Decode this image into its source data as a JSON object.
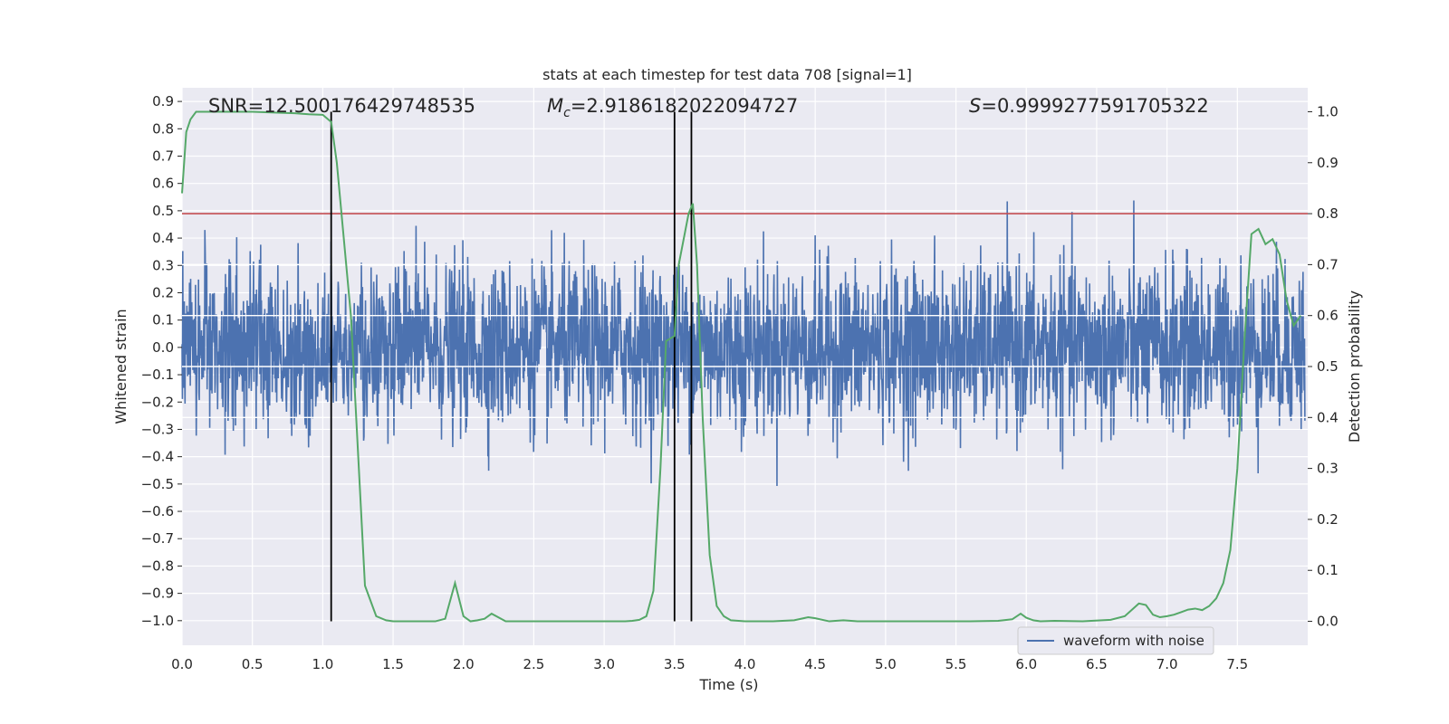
{
  "chart_data": {
    "type": "line",
    "title": "stats at each timestep for test data 708 [signal=1]",
    "xlabel": "Time (s)",
    "ylabel_left": "Whitened strain",
    "ylabel_right": "Detection probability",
    "xlim": [
      0.0,
      8.0
    ],
    "ylim_left": [
      -1.09,
      0.95
    ],
    "ylim_right": [
      -0.047,
      1.047
    ],
    "x_ticks": [
      "0.0",
      "0.5",
      "1.0",
      "1.5",
      "2.0",
      "2.5",
      "3.0",
      "3.5",
      "4.0",
      "4.5",
      "5.0",
      "5.5",
      "6.0",
      "6.5",
      "7.0",
      "7.5"
    ],
    "x_tick_values": [
      0.0,
      0.5,
      1.0,
      1.5,
      2.0,
      2.5,
      3.0,
      3.5,
      4.0,
      4.5,
      5.0,
      5.5,
      6.0,
      6.5,
      7.0,
      7.5
    ],
    "y_left_ticks": [
      "0.9",
      "0.8",
      "0.7",
      "0.6",
      "0.5",
      "0.4",
      "0.3",
      "0.2",
      "0.1",
      "0.0",
      "−0.1",
      "−0.2",
      "−0.3",
      "−0.4",
      "−0.5",
      "−0.6",
      "−0.7",
      "−0.8",
      "−0.9",
      "−1.0"
    ],
    "y_left_tick_values": [
      0.9,
      0.8,
      0.7,
      0.6,
      0.5,
      0.4,
      0.3,
      0.2,
      0.1,
      0.0,
      -0.1,
      -0.2,
      -0.3,
      -0.4,
      -0.5,
      -0.6,
      -0.7,
      -0.8,
      -0.9,
      -1.0
    ],
    "y_right_ticks": [
      "1.0",
      "0.9",
      "0.8",
      "0.7",
      "0.6",
      "0.5",
      "0.4",
      "0.3",
      "0.2",
      "0.1",
      "0.0"
    ],
    "y_right_tick_values": [
      1.0,
      0.9,
      0.8,
      0.7,
      0.6,
      0.5,
      0.4,
      0.3,
      0.2,
      0.1,
      0.0
    ],
    "annotations": {
      "snr": "SNR=12.500176429748535",
      "mc": "Mc=2.9186182022094727",
      "mc_symbol": "M",
      "mc_sub": "c",
      "mc_value": "=2.9186182022094727",
      "s_symbol": "S",
      "s_value": "=0.9999277591705322"
    },
    "threshold_line": {
      "value": 0.8,
      "axis": "right",
      "color": "#c44e52"
    },
    "vertical_lines": [
      1.06,
      3.5,
      3.62
    ],
    "white_bands_right": [
      0.7,
      0.6,
      0.5,
      0.4
    ],
    "series": [
      {
        "name": "waveform with noise",
        "axis": "left",
        "color": "#4c72b0",
        "kind": "noise",
        "sigma": 0.15,
        "samples": 3000,
        "seed": 708,
        "t_start": 0.0,
        "t_end": 7.98
      },
      {
        "name": "detection probability",
        "axis": "right",
        "color": "#55a868",
        "x": [
          0.0,
          0.03,
          0.06,
          0.1,
          0.15,
          0.3,
          0.5,
          0.7,
          0.8,
          0.9,
          1.0,
          1.06,
          1.1,
          1.2,
          1.3,
          1.38,
          1.45,
          1.5,
          1.6,
          1.7,
          1.8,
          1.87,
          1.94,
          2.0,
          2.05,
          2.1,
          2.15,
          2.2,
          2.3,
          2.5,
          2.7,
          2.9,
          3.0,
          3.1,
          3.15,
          3.2,
          3.25,
          3.3,
          3.35,
          3.4,
          3.44,
          3.5,
          3.53,
          3.6,
          3.63,
          3.66,
          3.7,
          3.75,
          3.8,
          3.85,
          3.9,
          4.0,
          4.2,
          4.35,
          4.45,
          4.5,
          4.6,
          4.7,
          4.8,
          4.9,
          5.0,
          5.2,
          5.4,
          5.6,
          5.8,
          5.9,
          5.96,
          6.0,
          6.05,
          6.1,
          6.2,
          6.4,
          6.6,
          6.7,
          6.8,
          6.85,
          6.9,
          6.95,
          7.0,
          7.05,
          7.1,
          7.15,
          7.2,
          7.25,
          7.3,
          7.35,
          7.4,
          7.45,
          7.5,
          7.55,
          7.6,
          7.65,
          7.7,
          7.75,
          7.8,
          7.85,
          7.9,
          7.95
        ],
        "y": [
          0.84,
          0.96,
          0.985,
          1.0,
          1.0,
          1.0,
          1.0,
          0.998,
          0.997,
          0.995,
          0.994,
          0.98,
          0.9,
          0.6,
          0.07,
          0.01,
          0.002,
          0.0,
          0.0,
          0.0,
          0.0,
          0.005,
          0.075,
          0.01,
          0.0,
          0.002,
          0.005,
          0.015,
          0.0,
          0.0,
          0.0,
          0.0,
          0.0,
          0.0,
          0.0,
          0.001,
          0.003,
          0.01,
          0.06,
          0.3,
          0.55,
          0.56,
          0.7,
          0.8,
          0.82,
          0.7,
          0.4,
          0.13,
          0.03,
          0.01,
          0.002,
          0.0,
          0.0,
          0.002,
          0.008,
          0.006,
          0.0,
          0.002,
          0.0,
          0.0,
          0.0,
          0.0,
          0.0,
          0.0,
          0.001,
          0.004,
          0.015,
          0.007,
          0.002,
          0.0,
          0.001,
          0.0,
          0.003,
          0.01,
          0.035,
          0.032,
          0.013,
          0.008,
          0.01,
          0.013,
          0.018,
          0.023,
          0.025,
          0.022,
          0.03,
          0.045,
          0.075,
          0.14,
          0.3,
          0.55,
          0.76,
          0.77,
          0.74,
          0.75,
          0.72,
          0.63,
          0.58,
          0.6
        ]
      }
    ],
    "legend": {
      "label": "waveform with noise",
      "placement": "lower-right"
    }
  }
}
